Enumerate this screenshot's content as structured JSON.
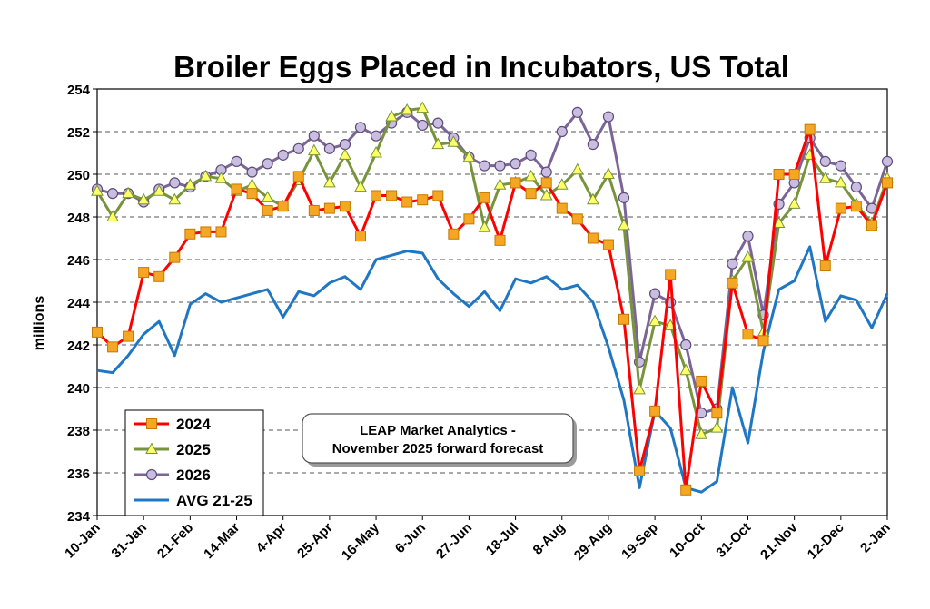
{
  "chart_data": {
    "type": "line",
    "title": "Broiler Eggs Placed in Incubators, US Total",
    "xlabel": "",
    "ylabel": "millions",
    "ylim": [
      234,
      254
    ],
    "yticks": [
      234,
      236,
      238,
      240,
      242,
      244,
      246,
      248,
      250,
      252,
      254
    ],
    "grid": true,
    "legend_position": "bottom-left",
    "x_tick_labels": [
      "10-Jan",
      "31-Jan",
      "21-Feb",
      "14-Mar",
      "4-Apr",
      "25-Apr",
      "16-May",
      "6-Jun",
      "27-Jun",
      "18-Jul",
      "8-Aug",
      "29-Aug",
      "19-Sep",
      "10-Oct",
      "31-Oct",
      "21-Nov",
      "12-Dec",
      "2-Jan"
    ],
    "x_tick_weeks": [
      0,
      3,
      6,
      9,
      12,
      15,
      18,
      21,
      24,
      27,
      30,
      33,
      36,
      39,
      42,
      45,
      48,
      51
    ],
    "annotation": [
      "LEAP Market Analytics -",
      "November 2025 forward forecast"
    ],
    "series": [
      {
        "name": "2024",
        "color": "#ff0000",
        "marker": "square",
        "marker_fill": "#f5a623",
        "marker_stroke": "#c47a00",
        "values": [
          242.6,
          241.9,
          242.4,
          245.4,
          245.2,
          246.1,
          247.2,
          247.3,
          247.3,
          249.3,
          249.1,
          248.3,
          248.5,
          249.9,
          248.3,
          248.4,
          248.5,
          247.1,
          249.0,
          249.0,
          248.7,
          248.8,
          249.0,
          247.2,
          247.9,
          248.9,
          246.9,
          249.6,
          249.1,
          249.6,
          248.4,
          247.9,
          247.0,
          246.7,
          243.2,
          236.1,
          238.9,
          245.3,
          235.2,
          240.3,
          238.8,
          244.9,
          242.5,
          242.2,
          250.0,
          250.0,
          252.1,
          245.7,
          248.4,
          248.5,
          247.6,
          249.6
        ]
      },
      {
        "name": "2025",
        "color": "#77933c",
        "marker": "triangle",
        "marker_fill": "#ffff66",
        "marker_stroke": "#77933c",
        "values": [
          249.2,
          248.0,
          249.1,
          248.8,
          249.2,
          248.8,
          249.5,
          249.9,
          249.8,
          249.2,
          249.5,
          248.9,
          248.5,
          249.7,
          251.1,
          249.6,
          250.9,
          249.4,
          251.0,
          252.7,
          253.0,
          253.1,
          251.4,
          251.5,
          250.8,
          247.5,
          249.5,
          249.6,
          249.9,
          249.0,
          249.5,
          250.2,
          248.8,
          250.0,
          247.6,
          239.9,
          243.1,
          242.9,
          240.8,
          237.8,
          238.1,
          245.0,
          246.1,
          242.6,
          247.7,
          248.6,
          250.9,
          249.8,
          249.6,
          248.6,
          247.7,
          249.8
        ]
      },
      {
        "name": "2026",
        "color": "#7b6596",
        "marker": "circle",
        "marker_fill": "#c9bde0",
        "marker_stroke": "#5e4b7a",
        "values": [
          249.3,
          249.1,
          249.1,
          248.7,
          249.3,
          249.6,
          249.4,
          249.9,
          250.2,
          250.6,
          250.1,
          250.5,
          250.9,
          251.2,
          251.8,
          251.2,
          251.4,
          252.2,
          251.8,
          252.4,
          252.9,
          252.3,
          252.4,
          251.7,
          250.8,
          250.4,
          250.4,
          250.5,
          250.9,
          250.1,
          252.0,
          252.9,
          251.4,
          252.7,
          248.9,
          241.2,
          244.4,
          244.0,
          242.0,
          238.8,
          239.0,
          245.8,
          247.1,
          243.4,
          248.6,
          249.6,
          251.7,
          250.6,
          250.4,
          249.4,
          248.4,
          250.6
        ]
      },
      {
        "name": "AVG 21-25",
        "color": "#1f77c4",
        "marker": "none",
        "values": [
          240.8,
          240.7,
          241.5,
          242.5,
          243.1,
          241.5,
          243.9,
          244.4,
          244.0,
          244.2,
          244.4,
          244.6,
          243.3,
          244.5,
          244.3,
          244.9,
          245.2,
          244.6,
          246.0,
          246.2,
          246.4,
          246.3,
          245.1,
          244.4,
          243.8,
          244.5,
          243.6,
          245.1,
          244.9,
          245.2,
          244.6,
          244.8,
          244.0,
          241.9,
          239.4,
          235.3,
          238.9,
          238.1,
          235.3,
          235.1,
          235.6,
          240.0,
          237.4,
          241.7,
          244.6,
          245.0,
          246.6,
          243.1,
          244.3,
          244.1,
          242.8,
          244.4
        ]
      }
    ]
  }
}
